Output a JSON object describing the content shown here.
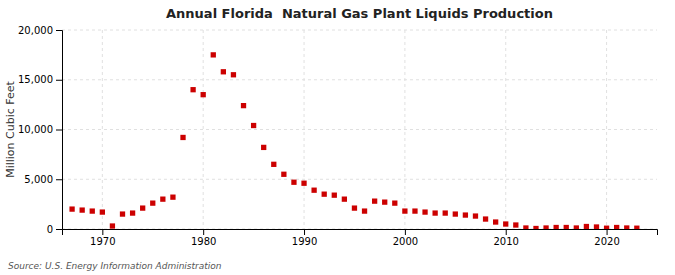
{
  "chart_data": {
    "type": "scatter",
    "title": "Annual Florida  Natural Gas Plant Liquids Production",
    "y_label": "Million Cubic Feet",
    "annotations": [
      "Source: U.S. Energy Information Administration"
    ],
    "color": "#cc0000",
    "marker": "square",
    "grid": true,
    "xlim": [
      1966,
      2025
    ],
    "xticks": [
      1970,
      1980,
      1990,
      2000,
      2010,
      2020
    ],
    "ylim": [
      0,
      20000
    ],
    "yticks": [
      0,
      {
        "value": 5000,
        "label": "5,000"
      },
      {
        "value": 10000,
        "label": "10,000"
      },
      {
        "value": 15000,
        "label": "15,000"
      },
      {
        "value": 20000,
        "label": "20,000"
      }
    ],
    "x": [
      1967,
      1968,
      1969,
      1970,
      1971,
      1972,
      1973,
      1974,
      1975,
      1976,
      1977,
      1978,
      1979,
      1980,
      1981,
      1982,
      1983,
      1984,
      1985,
      1986,
      1987,
      1988,
      1989,
      1990,
      1991,
      1992,
      1993,
      1994,
      1995,
      1996,
      1997,
      1998,
      1999,
      2000,
      2001,
      2002,
      2003,
      2004,
      2005,
      2006,
      2007,
      2008,
      2009,
      2010,
      2011,
      2012,
      2013,
      2014,
      2015,
      2016,
      2017,
      2018,
      2019,
      2020,
      2021,
      2022,
      2023
    ],
    "values": [
      2000,
      1900,
      1800,
      1700,
      300,
      1500,
      1600,
      2100,
      2600,
      3000,
      3200,
      9200,
      14000,
      13500,
      17500,
      15800,
      15500,
      12400,
      10400,
      8200,
      6500,
      5500,
      4700,
      4600,
      3900,
      3500,
      3400,
      3000,
      2100,
      1800,
      2800,
      2700,
      2600,
      1800,
      1800,
      1700,
      1600,
      1600,
      1500,
      1400,
      1300,
      1000,
      700,
      500,
      400,
      100,
      50,
      100,
      150,
      150,
      100,
      250,
      200,
      80,
      150,
      100,
      80
    ]
  }
}
